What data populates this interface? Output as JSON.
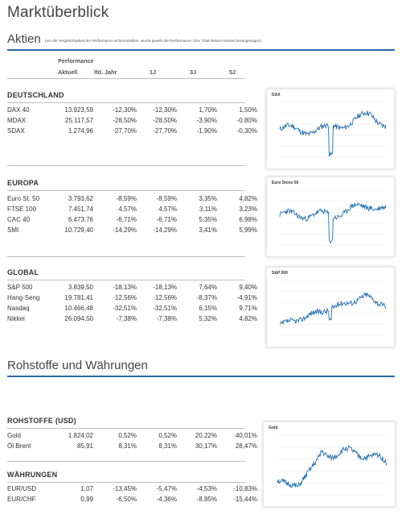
{
  "page_title": "Marktüberblick",
  "aktien": {
    "title": "Aktien",
    "note": "(um die Vergleichbarkeit der Performance sicherzustellen, wurde jeweils die Performance- bzw. Total-Return-Version herangezogen)"
  },
  "headers": {
    "performance": "Performance",
    "aktuell": "Aktuell",
    "lfd_jahr": "lfd. Jahr",
    "y1": "1J",
    "y3": "3J",
    "y5": "5J"
  },
  "groups": [
    {
      "title": "DEUTSCHLAND",
      "rows": [
        {
          "name": "DAX 40",
          "aktuell": "13.923,59",
          "lfd": "-12,30%",
          "y1": "-12,30%",
          "y3": "1,70%",
          "y5": "1,50%"
        },
        {
          "name": "MDAX",
          "aktuell": "25.117,57",
          "lfd": "-28,50%",
          "y1": "-28,50%",
          "y3": "-3,90%",
          "y5": "-0,80%"
        },
        {
          "name": "SDAX",
          "aktuell": "1.274,96",
          "lfd": "-27,70%",
          "y1": "-27,70%",
          "y3": "-1,90%",
          "y5": "-0,30%"
        }
      ]
    },
    {
      "title": "EUROPA",
      "rows": [
        {
          "name": "Euro St. 50",
          "aktuell": "3.793,62",
          "lfd": "-8,59%",
          "y1": "-8,59%",
          "y3": "3,35%",
          "y5": "4,82%"
        },
        {
          "name": "FTSE 100",
          "aktuell": "7.451,74",
          "lfd": "4,57%",
          "y1": "4,57%",
          "y3": "3,11%",
          "y5": "3,23%"
        },
        {
          "name": "CAC 40",
          "aktuell": "6.473,76",
          "lfd": "-6,71%",
          "y1": "-6,71%",
          "y3": "5,35%",
          "y5": "6,98%"
        },
        {
          "name": "SMI",
          "aktuell": "10.729,40",
          "lfd": "-14,29%",
          "y1": "-14,29%",
          "y3": "3,41%",
          "y5": "5,99%"
        }
      ]
    },
    {
      "title": "GLOBAL",
      "rows": [
        {
          "name": "S&P 500",
          "aktuell": "3.839,50",
          "lfd": "-18,13%",
          "y1": "-18,13%",
          "y3": "7,64%",
          "y5": "9,40%"
        },
        {
          "name": "Hang-Seng",
          "aktuell": "19.781,41",
          "lfd": "-12,56%",
          "y1": "-12,56%",
          "y3": "-8,37%",
          "y5": "-4,91%"
        },
        {
          "name": "Nasdaq",
          "aktuell": "10.466,48",
          "lfd": "-32,51%",
          "y1": "-32,51%",
          "y3": "6,15%",
          "y5": "9,71%"
        },
        {
          "name": "Nikkei",
          "aktuell": "26.094,50",
          "lfd": "-7,38%",
          "y1": "-7,38%",
          "y3": "5,32%",
          "y5": "4,82%"
        }
      ]
    }
  ],
  "rohstoffe_section": {
    "title": "Rohstoffe und Währungen"
  },
  "groups2": [
    {
      "title": "ROHSTOFFE (USD)",
      "rows": [
        {
          "name": "Gold",
          "aktuell": "1.824,02",
          "lfd": "0,52%",
          "y1": "0,52%",
          "y3": "20,22%",
          "y5": "40,01%"
        },
        {
          "name": "Öl Brent",
          "aktuell": "85,91",
          "lfd": "8,31%",
          "y1": "8,31%",
          "y3": "30,17%",
          "y5": "28,47%"
        }
      ]
    },
    {
      "title": "WÄHRUNGEN",
      "rows": [
        {
          "name": "EUR/USD",
          "aktuell": "1,07",
          "lfd": "-13,45%",
          "y1": "-5,47%",
          "y3": "-4,53%",
          "y5": "-10,83%"
        },
        {
          "name": "EUR/CHF",
          "aktuell": "0,99",
          "lfd": "-6,50%",
          "y1": "-4,36%",
          "y3": "-8,85%",
          "y5": "-15,44%"
        }
      ]
    }
  ],
  "charts": [
    {
      "title": "DAX",
      "color": "#1f6fb2"
    },
    {
      "title": "Euro Stoxx 50",
      "color": "#1f6fb2"
    },
    {
      "title": "S&P 500",
      "color": "#1f6fb2"
    },
    {
      "title": "Gold",
      "color": "#1f6fb2"
    }
  ],
  "colors": {
    "accent": "#2a6aa8",
    "line": "#1f6fb2"
  }
}
